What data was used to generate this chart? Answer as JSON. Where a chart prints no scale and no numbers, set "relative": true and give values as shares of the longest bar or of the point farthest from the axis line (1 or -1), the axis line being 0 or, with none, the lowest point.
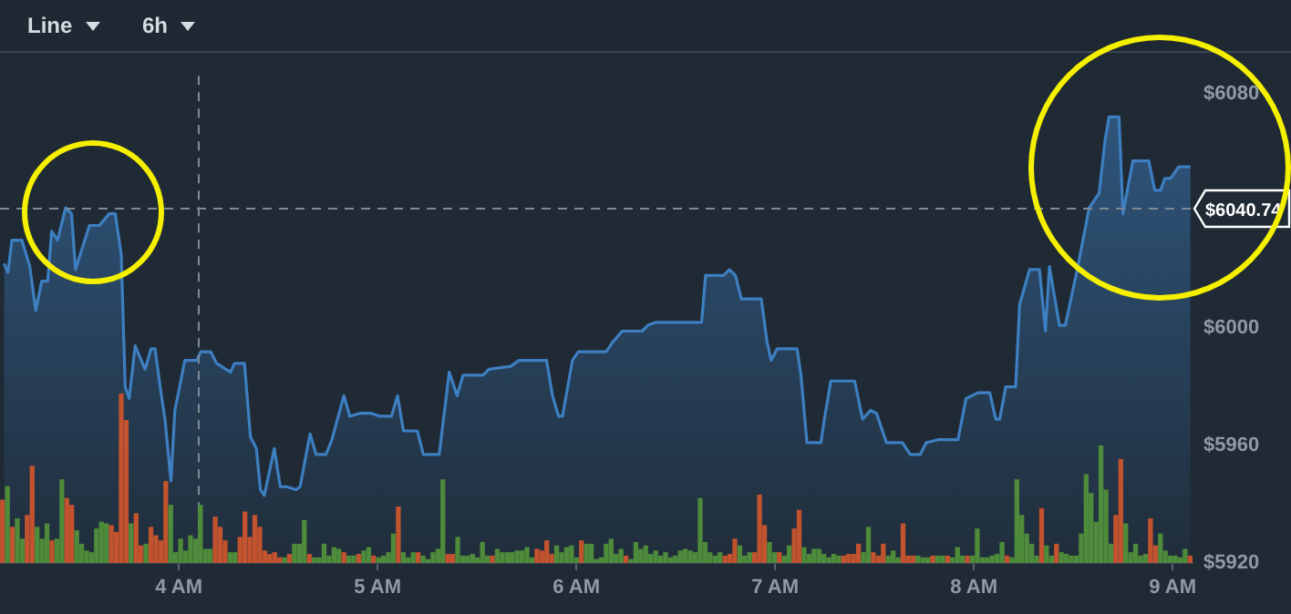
{
  "chart_data": [
    {
      "type": "area",
      "color": "#3d7fc1",
      "x": [
        3.12,
        3.14,
        3.16,
        3.21,
        3.25,
        3.28,
        3.31,
        3.34,
        3.36,
        3.39,
        3.43,
        3.46,
        3.48,
        3.55,
        3.6,
        3.65,
        3.68,
        3.71,
        3.73,
        3.75,
        3.78,
        3.83,
        3.86,
        3.88,
        3.91,
        3.93,
        3.96,
        3.98,
        4.03,
        4.09,
        4.11,
        4.16,
        4.19,
        4.26,
        4.28,
        4.33,
        4.36,
        4.39,
        4.41,
        4.43,
        4.48,
        4.51,
        4.54,
        4.59,
        4.61,
        4.66,
        4.69,
        4.74,
        4.77,
        4.83,
        4.86,
        4.91,
        4.97,
        5.01,
        5.07,
        5.1,
        5.13,
        5.2,
        5.23,
        5.31,
        5.36,
        5.4,
        5.43,
        5.53,
        5.56,
        5.67,
        5.71,
        5.82,
        5.85,
        5.88,
        5.91,
        5.93,
        5.98,
        6.01,
        6.15,
        6.18,
        6.23,
        6.33,
        6.36,
        6.4,
        6.63,
        6.65,
        6.68,
        6.74,
        6.77,
        6.8,
        6.83,
        6.93,
        6.96,
        6.98,
        7.01,
        7.11,
        7.13,
        7.16,
        7.23,
        7.25,
        7.28,
        7.4,
        7.44,
        7.48,
        7.51,
        7.56,
        7.64,
        7.68,
        7.73,
        7.76,
        7.82,
        7.92,
        7.96,
        8.02,
        8.08,
        8.11,
        8.13,
        8.16,
        8.21,
        8.23,
        8.28,
        8.33,
        8.36,
        8.38,
        8.43,
        8.46,
        8.52,
        8.58,
        8.63,
        8.66,
        8.68,
        8.73,
        8.75,
        8.8,
        8.88,
        8.91,
        8.94,
        8.96,
        8.99,
        9.03,
        9.09
      ],
      "values": [
        6022,
        6019,
        6030,
        6030,
        6021,
        6006,
        6016,
        6016,
        6033,
        6030,
        6041,
        6039,
        6020,
        6035,
        6035,
        6039,
        6039,
        6025,
        5980,
        5976,
        5994,
        5986,
        5993,
        5993,
        5978,
        5969,
        5948,
        5972,
        5989,
        5989,
        5992,
        5992,
        5988,
        5985,
        5988,
        5988,
        5963,
        5959,
        5945,
        5943,
        5959,
        5946,
        5946,
        5945,
        5946,
        5964,
        5957,
        5957,
        5962,
        5977,
        5970,
        5971,
        5971,
        5970,
        5970,
        5977,
        5965,
        5965,
        5957,
        5957,
        5985,
        5977,
        5984,
        5984,
        5986,
        5987,
        5989,
        5989,
        5989,
        5977,
        5970,
        5970,
        5989,
        5992,
        5992,
        5995,
        5999,
        5999,
        6001,
        6002,
        6002,
        6018,
        6018,
        6018,
        6020,
        6018,
        6010,
        6010,
        5995,
        5989,
        5993,
        5993,
        5984,
        5961,
        5961,
        5970,
        5982,
        5982,
        5969,
        5972,
        5971,
        5961,
        5961,
        5957,
        5957,
        5961,
        5962,
        5962,
        5976,
        5978,
        5978,
        5969,
        5969,
        5980,
        5980,
        6008,
        6020,
        6020,
        5999,
        6021,
        6001,
        6001,
        6020,
        6041,
        6046,
        6064,
        6072,
        6072,
        6039,
        6057,
        6057,
        6047,
        6047,
        6051,
        6051,
        6055,
        6055
      ],
      "xlim": [
        3.1,
        9.1
      ],
      "ylim": [
        5920,
        6086
      ],
      "xticks": [
        {
          "value": 4,
          "label": "4 AM"
        },
        {
          "value": 5,
          "label": "5 AM"
        },
        {
          "value": 6,
          "label": "6 AM"
        },
        {
          "value": 7,
          "label": "7 AM"
        },
        {
          "value": 8,
          "label": "8 AM"
        },
        {
          "value": 9,
          "label": "9 AM"
        }
      ],
      "yticks": [
        {
          "value": 5920,
          "label": "$5920"
        },
        {
          "value": 5960,
          "label": "$5960"
        },
        {
          "value": 6000,
          "label": "$6000"
        },
        {
          "value": 6080,
          "label": "$6080"
        }
      ],
      "ref_lines": [
        {
          "axis": "y",
          "value": 6040.74,
          "label": "$6040.74",
          "line_style": "dashed"
        },
        {
          "axis": "x",
          "value": 4.1,
          "line_style": "dashed"
        }
      ],
      "annotations": [
        "Line",
        "6h"
      ],
      "marker": "none",
      "line_style": "solid"
    },
    {
      "type": "bar",
      "relative": true,
      "categories": [
        null,
        null,
        null,
        null,
        null,
        null,
        null,
        null,
        null,
        null,
        null,
        null,
        null,
        null,
        null,
        null,
        null,
        null,
        null,
        null,
        null,
        null,
        null,
        null,
        null,
        null,
        null,
        null,
        null,
        null,
        null,
        null,
        null,
        null,
        null,
        null,
        null,
        null,
        null,
        null,
        null,
        null,
        null,
        null,
        null,
        null,
        null,
        null,
        null,
        null,
        null,
        null,
        null,
        null,
        null,
        null,
        null,
        null,
        null,
        null,
        null,
        null,
        null,
        null,
        null,
        null,
        null,
        null,
        null,
        null,
        null,
        null,
        null,
        null,
        null,
        null,
        null,
        null,
        null,
        null,
        null,
        null,
        null,
        null,
        null,
        null,
        null,
        null,
        null,
        null,
        null,
        null,
        null,
        null,
        null,
        null,
        null,
        null,
        null,
        null,
        null,
        null,
        null,
        null,
        null,
        null,
        null,
        null,
        null,
        null,
        null,
        null,
        null,
        null,
        null,
        null,
        null,
        null,
        null,
        null,
        null,
        null,
        null,
        null,
        null,
        null,
        null,
        null,
        null,
        null,
        null,
        null,
        null,
        null,
        null,
        null,
        null,
        null,
        null,
        null,
        null,
        null,
        null,
        null,
        null,
        null,
        null,
        null,
        null,
        null,
        null,
        null,
        null,
        null,
        null,
        null,
        null,
        null,
        null,
        null,
        null,
        null,
        null,
        null,
        null,
        null,
        null,
        null,
        null,
        null,
        null,
        null,
        null,
        null,
        null,
        null,
        null,
        null,
        null,
        null,
        null,
        null,
        null,
        null,
        null,
        null,
        null,
        null,
        null,
        null,
        null,
        null,
        null,
        null,
        null,
        null,
        null,
        null,
        null,
        null,
        null,
        null,
        null,
        null,
        null,
        null,
        null,
        null,
        null,
        null,
        null,
        null,
        null,
        null,
        null,
        null,
        null,
        null,
        null,
        null,
        null,
        null,
        null,
        null,
        null,
        null,
        null,
        null,
        null,
        null,
        null,
        null,
        null,
        null,
        null,
        null,
        null,
        null,
        null,
        null,
        null
      ],
      "values": [
        0.37,
        0.45,
        0.21,
        0.26,
        0.14,
        0.28,
        0.57,
        0.21,
        0.14,
        0.23,
        0.13,
        0.14,
        0.49,
        0.38,
        0.34,
        0.19,
        0.11,
        0.07,
        0.06,
        0.2,
        0.24,
        0.23,
        0.22,
        0.18,
        1,
        0.84,
        0.23,
        0.29,
        0.1,
        0.11,
        0.21,
        0.16,
        0.13,
        0.48,
        0.34,
        0.06,
        0.14,
        0.07,
        0.16,
        0.14,
        0.34,
        0.08,
        0.08,
        0.27,
        0.21,
        0.13,
        0.06,
        0.06,
        0.15,
        0.3,
        0.15,
        0.28,
        0.21,
        0.07,
        0.05,
        0.06,
        0.03,
        0.03,
        0.05,
        0.11,
        0.11,
        0.25,
        0.05,
        0.03,
        0.03,
        0.11,
        0.04,
        0.09,
        0.08,
        0.06,
        0.04,
        0.04,
        0.05,
        0.07,
        0.09,
        0.04,
        0.03,
        0.04,
        0.06,
        0.17,
        0.33,
        0.06,
        0.03,
        0.06,
        0.06,
        0.04,
        0.02,
        0.06,
        0.08,
        0.49,
        0.05,
        0.05,
        0.15,
        0.04,
        0.04,
        0.05,
        0.03,
        0.12,
        0.04,
        0.04,
        0.08,
        0.06,
        0.06,
        0.06,
        0.07,
        0.07,
        0.09,
        0.03,
        0.08,
        0.07,
        0.13,
        0.05,
        0.1,
        0.06,
        0.09,
        0.1,
        0.03,
        0.13,
        0.11,
        0.11,
        0.02,
        0.03,
        0.11,
        0.14,
        0.05,
        0.08,
        0.04,
        0.02,
        0.12,
        0.08,
        0.1,
        0.05,
        0.07,
        0.04,
        0.06,
        0.03,
        0.04,
        0.07,
        0.08,
        0.07,
        0.06,
        0.38,
        0.12,
        0.06,
        0.04,
        0.06,
        0.04,
        0.05,
        0.14,
        0.1,
        0.04,
        0.06,
        0.06,
        0.4,
        0.22,
        0.12,
        0.06,
        0.06,
        0.04,
        0.1,
        0.2,
        0.31,
        0.09,
        0.05,
        0.08,
        0.08,
        0.05,
        0.03,
        0.05,
        0.04,
        0.04,
        0.05,
        0.05,
        0.11,
        0.06,
        0.21,
        0.06,
        0.04,
        0.11,
        0.04,
        0.07,
        0.03,
        0.23,
        0.04,
        0.04,
        0.04,
        0.03,
        0.03,
        0.04,
        0.04,
        0.04,
        0.04,
        0.03,
        0.09,
        0.04,
        0.04,
        0.04,
        0.2,
        0.03,
        0.03,
        0.04,
        0.05,
        0.12,
        0.04,
        0.03,
        0.49,
        0.28,
        0.17,
        0.11,
        0.04,
        0.32,
        0.1,
        0.04,
        0.11,
        0.06,
        0.05,
        0.04,
        0.04,
        0.17,
        0.52,
        0.41,
        0.24,
        0.69,
        0.43,
        0.11,
        0.28,
        0.61,
        0.23,
        0.06,
        0.11,
        0.04,
        0.05,
        0.26,
        0.1,
        0.17,
        0.07,
        0.04,
        0.04,
        0.03,
        0.08,
        0.04
      ],
      "colors": [
        "#c2532e",
        "#4e8b3b",
        "#c2532e",
        "#4e8b3b",
        "#4e8b3b",
        "#c2532e",
        "#c2532e",
        "#4e8b3b",
        "#4e8b3b",
        "#4e8b3b",
        "#c2532e",
        "#4e8b3b",
        "#4e8b3b",
        "#c2532e",
        "#c2532e",
        "#4e8b3b",
        "#4e8b3b",
        "#4e8b3b",
        "#4e8b3b",
        "#4e8b3b",
        "#4e8b3b",
        "#4e8b3b",
        "#c2532e",
        "#c2532e",
        "#c2532e",
        "#c2532e",
        "#4e8b3b",
        "#c2532e",
        "#c2532e",
        "#4e8b3b",
        "#c2532e",
        "#c2532e",
        "#c2532e",
        "#c2532e",
        "#4e8b3b",
        "#4e8b3b",
        "#4e8b3b",
        "#4e8b3b",
        "#4e8b3b",
        "#4e8b3b",
        "#4e8b3b",
        "#4e8b3b",
        "#4e8b3b",
        "#c2532e",
        "#c2532e",
        "#c2532e",
        "#4e8b3b",
        "#4e8b3b",
        "#c2532e",
        "#c2532e",
        "#c2532e",
        "#c2532e",
        "#c2532e",
        "#c2532e",
        "#c2532e",
        "#c2532e",
        "#c2532e",
        "#4e8b3b",
        "#c2532e",
        "#4e8b3b",
        "#4e8b3b",
        "#4e8b3b",
        "#c2532e",
        "#4e8b3b",
        "#4e8b3b",
        "#4e8b3b",
        "#4e8b3b",
        "#4e8b3b",
        "#4e8b3b",
        "#c2532e",
        "#4e8b3b",
        "#4e8b3b",
        "#c2532e",
        "#4e8b3b",
        "#4e8b3b",
        "#c2532e",
        "#4e8b3b",
        "#4e8b3b",
        "#4e8b3b",
        "#4e8b3b",
        "#c2532e",
        "#4e8b3b",
        "#4e8b3b",
        "#4e8b3b",
        "#c2532e",
        "#4e8b3b",
        "#4e8b3b",
        "#4e8b3b",
        "#4e8b3b",
        "#4e8b3b",
        "#c2532e",
        "#c2532e",
        "#4e8b3b",
        "#4e8b3b",
        "#4e8b3b",
        "#4e8b3b",
        "#4e8b3b",
        "#4e8b3b",
        "#4e8b3b",
        "#c2532e",
        "#4e8b3b",
        "#4e8b3b",
        "#4e8b3b",
        "#4e8b3b",
        "#4e8b3b",
        "#4e8b3b",
        "#4e8b3b",
        "#4e8b3b",
        "#c2532e",
        "#c2532e",
        "#c2532e",
        "#c2532e",
        "#4e8b3b",
        "#4e8b3b",
        "#4e8b3b",
        "#4e8b3b",
        "#4e8b3b",
        "#c2532e",
        "#4e8b3b",
        "#4e8b3b",
        "#4e8b3b",
        "#4e8b3b",
        "#4e8b3b",
        "#4e8b3b",
        "#4e8b3b",
        "#4e8b3b",
        "#c2532e",
        "#4e8b3b",
        "#4e8b3b",
        "#4e8b3b",
        "#4e8b3b",
        "#4e8b3b",
        "#4e8b3b",
        "#4e8b3b",
        "#4e8b3b",
        "#4e8b3b",
        "#4e8b3b",
        "#4e8b3b",
        "#4e8b3b",
        "#4e8b3b",
        "#4e8b3b",
        "#4e8b3b",
        "#4e8b3b",
        "#4e8b3b",
        "#4e8b3b",
        "#4e8b3b",
        "#c2532e",
        "#c2532e",
        "#c2532e",
        "#4e8b3b",
        "#4e8b3b",
        "#4e8b3b",
        "#c2532e",
        "#c2532e",
        "#c2532e",
        "#4e8b3b",
        "#4e8b3b",
        "#c2532e",
        "#4e8b3b",
        "#4e8b3b",
        "#c2532e",
        "#c2532e",
        "#4e8b3b",
        "#4e8b3b",
        "#4e8b3b",
        "#4e8b3b",
        "#4e8b3b",
        "#4e8b3b",
        "#4e8b3b",
        "#4e8b3b",
        "#c2532e",
        "#c2532e",
        "#c2532e",
        "#c2532e",
        "#4e8b3b",
        "#4e8b3b",
        "#c2532e",
        "#c2532e",
        "#c2532e",
        "#4e8b3b",
        "#4e8b3b",
        "#4e8b3b",
        "#c2532e",
        "#c2532e",
        "#c2532e",
        "#4e8b3b",
        "#4e8b3b",
        "#4e8b3b",
        "#c2532e",
        "#4e8b3b",
        "#4e8b3b",
        "#c2532e",
        "#4e8b3b",
        "#4e8b3b",
        "#4e8b3b",
        "#c2532e",
        "#4e8b3b",
        "#4e8b3b",
        "#4e8b3b",
        "#4e8b3b",
        "#4e8b3b",
        "#4e8b3b",
        "#4e8b3b",
        "#c2532e",
        "#4e8b3b",
        "#4e8b3b",
        "#4e8b3b",
        "#4e8b3b",
        "#4e8b3b",
        "#4e8b3b",
        "#c2532e",
        "#4e8b3b",
        "#4e8b3b",
        "#c2532e",
        "#4e8b3b",
        "#4e8b3b",
        "#4e8b3b",
        "#4e8b3b",
        "#4e8b3b",
        "#4e8b3b",
        "#4e8b3b",
        "#4e8b3b",
        "#4e8b3b",
        "#4e8b3b",
        "#4e8b3b",
        "#c2532e",
        "#c2532e",
        "#4e8b3b",
        "#4e8b3b",
        "#4e8b3b",
        "#4e8b3b",
        "#4e8b3b",
        "#c2532e",
        "#c2532e",
        "#4e8b3b",
        "#4e8b3b",
        "#4e8b3b",
        "#4e8b3b",
        "#4e8b3b",
        "#4e8b3b",
        "#c2532e"
      ]
    }
  ]
}
